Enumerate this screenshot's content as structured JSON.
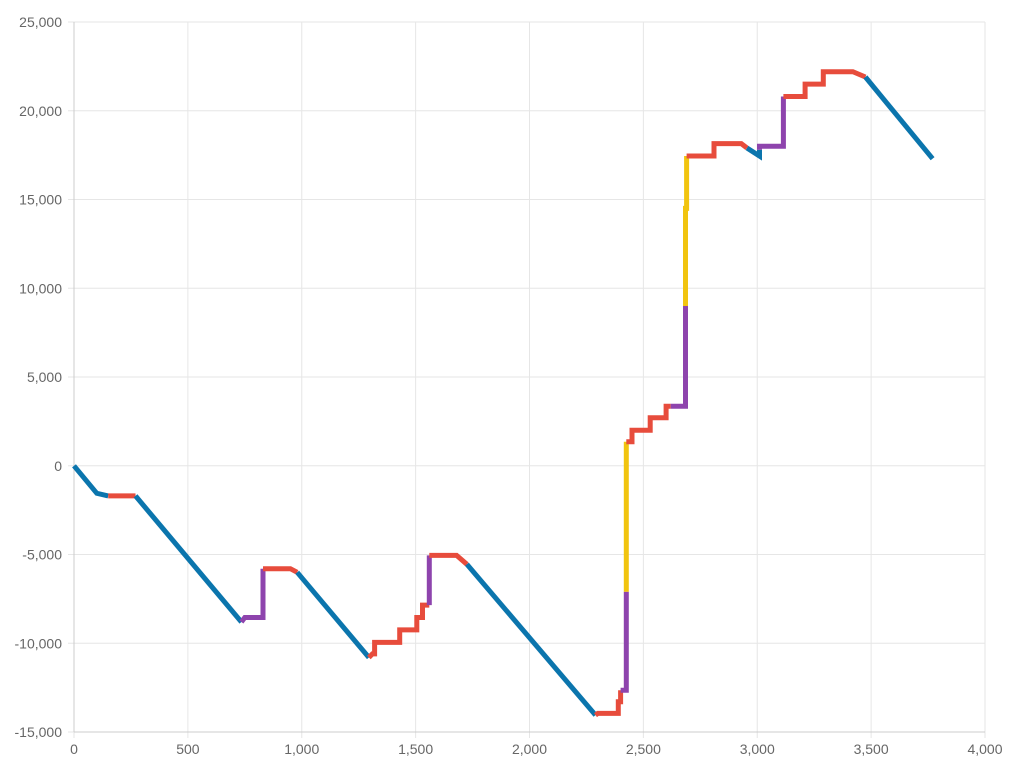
{
  "chart_data": {
    "type": "line",
    "title": "",
    "xlabel": "",
    "ylabel": "",
    "xlim": [
      0,
      4000
    ],
    "ylim": [
      -15000,
      25000
    ],
    "x_ticks": [
      0,
      500,
      1000,
      1500,
      2000,
      2500,
      3000,
      3500,
      4000
    ],
    "x_tick_labels": [
      "0",
      "500",
      "1,000",
      "1,500",
      "2,000",
      "2,500",
      "3,000",
      "3,500",
      "4,000"
    ],
    "y_ticks": [
      -15000,
      -10000,
      -5000,
      0,
      5000,
      10000,
      15000,
      20000,
      25000
    ],
    "y_tick_labels": [
      "-15,000",
      "-10,000",
      "-5,000",
      "0",
      "5,000",
      "10,000",
      "15,000",
      "20,000",
      "25,000"
    ],
    "grid": true,
    "legend": "none",
    "colors": {
      "blue": "#0b75ad",
      "red": "#e74c3c",
      "purple": "#8e44ad",
      "yellow": "#f1c40f",
      "grid": "#e6e6e6",
      "axis": "#cccccc"
    },
    "segments": [
      {
        "color": "blue",
        "points": [
          [
            0,
            0
          ],
          [
            100,
            -1550
          ],
          [
            150,
            -1700
          ]
        ]
      },
      {
        "color": "red",
        "points": [
          [
            150,
            -1700
          ],
          [
            270,
            -1700
          ]
        ]
      },
      {
        "color": "blue",
        "points": [
          [
            270,
            -1700
          ],
          [
            735,
            -8800
          ]
        ]
      },
      {
        "color": "purple",
        "points": [
          [
            735,
            -8800
          ],
          [
            750,
            -8550
          ],
          [
            830,
            -8550
          ],
          [
            830,
            -5800
          ]
        ]
      },
      {
        "color": "red",
        "points": [
          [
            830,
            -5800
          ],
          [
            950,
            -5800
          ],
          [
            980,
            -6000
          ]
        ]
      },
      {
        "color": "blue",
        "points": [
          [
            980,
            -6000
          ],
          [
            1295,
            -10800
          ]
        ]
      },
      {
        "color": "red",
        "points": [
          [
            1295,
            -10800
          ],
          [
            1310,
            -10600
          ],
          [
            1320,
            -10600
          ],
          [
            1320,
            -9950
          ],
          [
            1430,
            -9950
          ],
          [
            1430,
            -9250
          ],
          [
            1505,
            -9250
          ],
          [
            1505,
            -8550
          ],
          [
            1530,
            -8550
          ],
          [
            1530,
            -7850
          ],
          [
            1560,
            -7850
          ]
        ]
      },
      {
        "color": "purple",
        "points": [
          [
            1560,
            -7850
          ],
          [
            1560,
            -5050
          ]
        ]
      },
      {
        "color": "red",
        "points": [
          [
            1560,
            -5050
          ],
          [
            1680,
            -5050
          ],
          [
            1725,
            -5550
          ]
        ]
      },
      {
        "color": "blue",
        "points": [
          [
            1725,
            -5550
          ],
          [
            2290,
            -14050
          ]
        ]
      },
      {
        "color": "red",
        "points": [
          [
            2290,
            -14050
          ],
          [
            2300,
            -13950
          ],
          [
            2390,
            -13950
          ],
          [
            2390,
            -13300
          ],
          [
            2400,
            -13300
          ],
          [
            2400,
            -12650
          ]
        ]
      },
      {
        "color": "purple",
        "points": [
          [
            2400,
            -12650
          ],
          [
            2425,
            -12650
          ],
          [
            2425,
            -7100
          ]
        ]
      },
      {
        "color": "yellow",
        "points": [
          [
            2425,
            -7100
          ],
          [
            2425,
            1350
          ]
        ]
      },
      {
        "color": "red",
        "points": [
          [
            2425,
            1350
          ],
          [
            2450,
            1350
          ],
          [
            2450,
            2000
          ],
          [
            2530,
            2000
          ],
          [
            2530,
            2700
          ],
          [
            2600,
            2700
          ],
          [
            2600,
            3350
          ],
          [
            2620,
            3350
          ]
        ]
      },
      {
        "color": "purple",
        "points": [
          [
            2620,
            3350
          ],
          [
            2685,
            3350
          ],
          [
            2685,
            9000
          ]
        ]
      },
      {
        "color": "yellow",
        "points": [
          [
            2685,
            9000
          ],
          [
            2685,
            14500
          ],
          [
            2690,
            14500
          ],
          [
            2690,
            17450
          ]
        ]
      },
      {
        "color": "red",
        "points": [
          [
            2690,
            17450
          ],
          [
            2810,
            17450
          ],
          [
            2810,
            18150
          ],
          [
            2930,
            18150
          ],
          [
            2955,
            17900
          ]
        ]
      },
      {
        "color": "blue",
        "points": [
          [
            2955,
            17900
          ],
          [
            3010,
            17450
          ],
          [
            3010,
            17800
          ]
        ]
      },
      {
        "color": "purple",
        "points": [
          [
            3010,
            17800
          ],
          [
            3010,
            18000
          ],
          [
            3115,
            18000
          ],
          [
            3115,
            20800
          ]
        ]
      },
      {
        "color": "red",
        "points": [
          [
            3115,
            20800
          ],
          [
            3210,
            20800
          ],
          [
            3210,
            21500
          ],
          [
            3290,
            21500
          ],
          [
            3290,
            22200
          ],
          [
            3420,
            22200
          ],
          [
            3475,
            21900
          ]
        ]
      },
      {
        "color": "blue",
        "points": [
          [
            3475,
            21900
          ],
          [
            3770,
            17300
          ]
        ]
      }
    ]
  }
}
